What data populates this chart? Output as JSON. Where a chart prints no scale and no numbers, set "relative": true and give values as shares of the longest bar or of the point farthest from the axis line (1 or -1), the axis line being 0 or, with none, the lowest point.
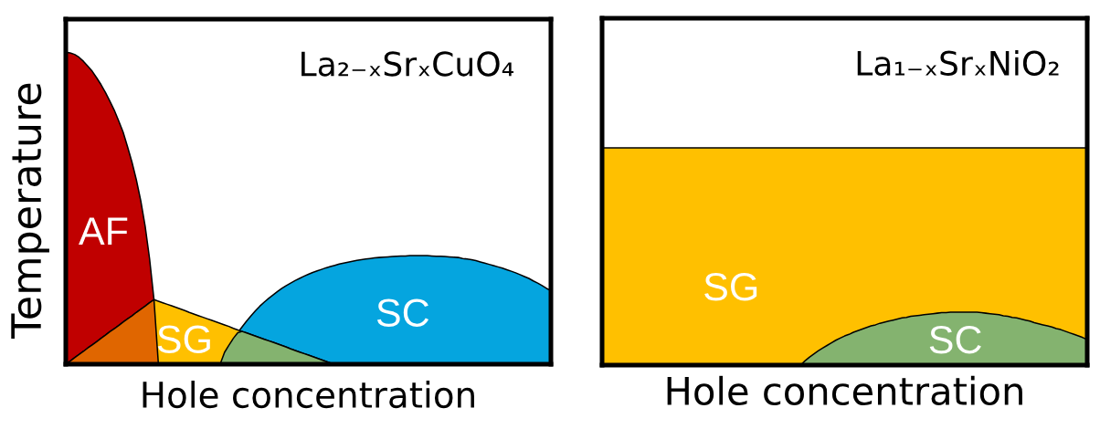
{
  "chart_data": [
    {
      "type": "area",
      "title": "La₂₋ₓSrₓCuO₄",
      "xlabel": "Hole concentration",
      "ylabel": "Temperature",
      "relative": true,
      "categories": [
        null,
        null,
        null,
        null,
        null,
        null,
        null,
        null,
        null,
        null,
        null,
        null,
        null,
        null,
        null,
        null,
        null,
        null,
        null,
        null,
        null,
        null,
        null,
        null,
        null,
        null,
        null,
        null,
        null,
        null,
        null,
        null,
        null,
        null,
        null,
        null,
        null,
        null,
        null,
        null,
        null,
        null,
        null,
        null,
        null,
        null,
        null,
        null,
        null,
        null,
        null,
        null,
        null,
        null,
        null,
        null,
        null,
        null,
        null,
        null,
        null,
        null,
        null,
        null,
        null,
        null,
        null,
        null,
        null,
        null,
        null,
        null,
        null,
        null,
        null,
        null,
        null,
        null,
        null,
        null,
        null,
        null,
        null,
        null,
        null,
        null,
        null,
        null,
        null,
        null,
        null,
        null,
        null,
        null,
        null,
        null,
        null,
        null,
        null,
        null,
        null,
        null,
        null,
        null,
        null,
        null,
        null,
        null,
        null,
        null,
        null
      ],
      "series": [
        {
          "name": "AF",
          "color": "#c00000",
          "values": [
            1.0,
            0.998,
            0.993,
            0.984,
            0.971,
            0.955,
            0.939,
            0.918,
            0.896,
            0.871,
            0.843,
            0.814,
            0.78,
            0.744,
            0.697,
            0.648,
            0.591,
            0.524,
            0.442,
            0.338,
            0.207,
            0.0,
            null,
            null,
            null,
            null,
            null,
            null,
            null,
            null,
            null,
            null,
            null,
            null,
            null,
            null,
            null,
            null,
            null,
            null,
            null,
            null,
            null,
            null,
            null,
            null,
            null,
            null,
            null,
            null,
            null,
            null,
            null,
            null,
            null,
            null,
            null,
            null,
            null,
            null,
            null,
            null,
            null,
            null,
            null,
            null,
            null,
            null,
            null,
            null,
            null,
            null,
            null,
            null,
            null,
            null,
            null,
            null,
            null,
            null,
            null,
            null,
            null,
            null,
            null,
            null,
            null,
            null,
            null,
            null,
            null,
            null,
            null,
            null,
            null,
            null,
            null,
            null,
            null,
            null,
            null,
            null,
            null,
            null,
            null,
            null,
            null,
            null,
            null,
            null,
            null
          ]
        },
        {
          "name": "SC",
          "color": "#05a5df",
          "values": [
            null,
            null,
            null,
            null,
            null,
            null,
            null,
            null,
            null,
            null,
            null,
            null,
            null,
            null,
            null,
            null,
            null,
            null,
            null,
            null,
            null,
            null,
            null,
            null,
            null,
            null,
            null,
            null,
            null,
            null,
            null,
            null,
            null,
            null,
            null,
            null,
            null,
            null,
            null,
            0.101,
            0.12,
            0.138,
            0.155,
            0.171,
            0.186,
            0.199,
            0.211,
            0.222,
            0.233,
            0.243,
            0.252,
            0.26,
            0.268,
            0.275,
            0.282,
            0.288,
            0.294,
            0.299,
            0.304,
            0.309,
            0.313,
            0.317,
            0.321,
            0.324,
            0.327,
            0.33,
            0.333,
            0.335,
            0.337,
            0.339,
            0.341,
            0.342,
            0.343,
            0.344,
            0.345,
            0.346,
            0.347,
            0.347,
            0.348,
            0.348,
            0.348,
            0.348,
            0.348,
            0.347,
            0.346,
            0.346,
            0.345,
            0.344,
            0.343,
            0.342,
            0.339,
            0.337,
            0.335,
            0.332,
            0.328,
            0.324,
            0.32,
            0.316,
            0.312,
            0.308,
            0.303,
            0.298,
            0.293,
            0.287,
            0.281,
            0.275,
            0.267,
            0.26,
            0.252,
            0.243,
            0.236
          ]
        },
        {
          "name": "SG",
          "color": "#ffc000",
          "values": [
            0.0,
            0.01,
            0.021,
            0.031,
            0.041,
            0.052,
            0.062,
            0.072,
            0.083,
            0.093,
            0.104,
            0.114,
            0.124,
            0.135,
            0.145,
            0.155,
            0.166,
            0.176,
            0.186,
            0.197,
            0.207,
            0.202,
            0.197,
            0.192,
            0.187,
            0.182,
            0.177,
            0.172,
            0.166,
            0.161,
            0.156,
            0.151,
            0.146,
            0.141,
            0.136,
            0.131,
            0.126,
            0.121,
            0.115,
            0.11,
            0.105,
            0.1,
            0.095,
            0.09,
            0.085,
            0.08,
            0.075,
            0.07,
            0.065,
            0.06,
            0.055,
            0.049,
            0.044,
            0.039,
            0.034,
            0.029,
            0.024,
            0.019,
            0.014,
            0.009,
            0.004,
            0.0,
            null,
            null,
            null,
            null,
            null,
            null,
            null,
            null,
            null,
            null,
            null,
            null,
            null,
            null,
            null,
            null,
            null,
            null,
            null,
            null,
            null,
            null,
            null,
            null,
            null,
            null,
            null,
            null,
            null,
            null,
            null,
            null,
            null,
            null,
            null,
            null,
            null,
            null,
            null,
            null,
            null,
            null,
            null,
            null,
            null,
            null,
            null,
            null,
            null
          ]
        },
        {
          "color": "#e06600",
          "values": [
            0.0,
            0.01,
            0.021,
            0.031,
            0.041,
            0.052,
            0.062,
            0.072,
            0.083,
            0.093,
            0.104,
            0.114,
            0.124,
            0.135,
            0.145,
            0.155,
            0.166,
            0.176,
            0.186,
            0.197,
            0.207,
            0.0,
            null,
            null,
            null,
            null,
            null,
            null,
            null,
            null,
            null,
            null,
            null,
            null,
            null,
            null,
            null,
            null,
            null,
            null,
            null,
            null,
            null,
            null,
            null,
            null,
            null,
            null,
            null,
            null,
            null,
            null,
            null,
            null,
            null,
            null,
            null,
            null,
            null,
            null,
            null,
            null,
            null,
            null,
            null,
            null,
            null,
            null,
            null,
            null,
            null,
            null,
            null,
            null,
            null,
            null,
            null,
            null,
            null,
            null,
            null,
            null,
            null,
            null,
            null,
            null,
            null,
            null,
            null,
            null,
            null,
            null,
            null,
            null,
            null,
            null,
            null,
            null,
            null,
            null,
            null,
            null,
            null,
            null,
            null,
            null,
            null,
            null,
            null,
            null,
            null
          ]
        },
        {
          "color": "#84b36f",
          "values": [
            null,
            null,
            null,
            null,
            null,
            null,
            null,
            null,
            null,
            null,
            null,
            null,
            null,
            null,
            null,
            null,
            null,
            null,
            null,
            null,
            null,
            null,
            null,
            null,
            null,
            null,
            null,
            null,
            null,
            null,
            null,
            null,
            null,
            null,
            null,
            0.0,
            0.038,
            0.061,
            0.083,
            0.101,
            0.105,
            0.1,
            0.095,
            0.09,
            0.085,
            0.08,
            0.075,
            0.07,
            0.065,
            0.06,
            0.055,
            0.049,
            0.044,
            0.039,
            0.034,
            0.029,
            0.024,
            0.019,
            0.014,
            0.009,
            0.004,
            0.0,
            null,
            null,
            null,
            null,
            null,
            null,
            null,
            null,
            null,
            null,
            null,
            null,
            null,
            null,
            null,
            null,
            null,
            null,
            null,
            null,
            null,
            null,
            null,
            null,
            null,
            null,
            null,
            null,
            null,
            null,
            null,
            null,
            null,
            null,
            null,
            null,
            null,
            null,
            null,
            null,
            null,
            null,
            null,
            null,
            null,
            null,
            null,
            null,
            null
          ]
        }
      ]
    },
    {
      "type": "area",
      "title": "La₁₋ₓSrₓNiO₂",
      "xlabel": "Hole concentration",
      "relative": true,
      "categories": [
        null,
        null,
        null,
        null,
        null,
        null,
        null,
        null,
        null,
        null,
        null,
        null,
        null,
        null,
        null,
        null,
        null,
        null,
        null,
        null,
        null,
        null,
        null,
        null,
        null,
        null,
        null,
        null,
        null,
        null,
        null,
        null,
        null,
        null,
        null,
        null,
        null,
        null,
        null,
        null,
        null,
        null,
        null,
        null,
        null,
        null,
        null,
        null,
        null,
        null,
        null,
        null,
        null,
        null,
        null,
        null,
        null,
        null,
        null,
        null,
        null,
        null,
        null,
        null,
        null,
        null,
        null,
        null,
        null,
        null,
        null,
        null,
        null,
        null,
        null,
        null,
        null,
        null,
        null,
        null,
        null,
        null,
        null,
        null,
        null,
        null,
        null,
        null,
        null,
        null,
        null,
        null,
        null,
        null,
        null,
        null,
        null,
        null,
        null,
        null,
        null,
        null,
        null,
        null,
        null,
        null,
        null,
        null,
        null,
        null,
        null
      ],
      "bands": [
        {
          "axis": "y",
          "from": 0,
          "to": 4.1,
          "label": "SG",
          "color": "#ffc000"
        }
      ],
      "series": [
        {
          "name": "SC",
          "color": "#84b36f",
          "values": [
            null,
            null,
            null,
            null,
            null,
            null,
            null,
            null,
            null,
            null,
            null,
            null,
            null,
            null,
            null,
            null,
            null,
            null,
            null,
            null,
            null,
            null,
            null,
            null,
            null,
            null,
            null,
            null,
            null,
            null,
            null,
            null,
            null,
            null,
            null,
            null,
            null,
            null,
            null,
            null,
            null,
            null,
            null,
            null,
            null,
            0.0,
            0.08,
            0.15,
            0.21,
            0.27,
            0.32,
            0.37,
            0.42,
            0.47,
            0.51,
            0.55,
            0.58,
            0.62,
            0.65,
            0.68,
            0.71,
            0.74,
            0.76,
            0.79,
            0.81,
            0.83,
            0.85,
            0.87,
            0.89,
            0.9,
            0.92,
            0.93,
            0.94,
            0.95,
            0.96,
            0.97,
            0.98,
            0.99,
            0.99,
            1.0,
            1.0,
            1.0,
            1.0,
            1.0,
            1.0,
            1.0,
            0.99,
            0.98,
            0.97,
            0.96,
            0.95,
            0.93,
            0.92,
            0.9,
            0.89,
            0.87,
            0.85,
            0.83,
            0.8,
            0.78,
            0.76,
            0.74,
            0.72,
            0.69,
            0.67,
            0.64,
            0.61,
            0.58,
            0.55,
            0.52,
            0.48
          ]
        }
      ]
    }
  ]
}
